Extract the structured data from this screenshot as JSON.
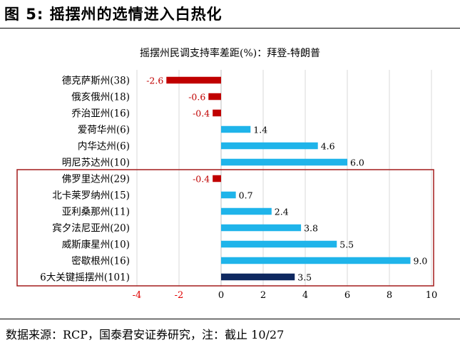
{
  "figure_title": "图 5:  摇摆州的选情进入白热化",
  "source": "数据来源：RCP，国泰君安证券研究，注：截止 10/27",
  "colors": {
    "negative": "#C00000",
    "positive": "#1FB4EA",
    "total": "#0E2860",
    "axis_text": "#000000",
    "neg_tick": "#E00000",
    "highlight_box": "#A31C1C"
  },
  "chart_data": {
    "type": "bar",
    "orientation": "horizontal",
    "title": "摇摆州民调支持率差距(%)：拜登-特朗普",
    "categories": [
      "德克萨斯州(38)",
      "俄亥俄州(18)",
      "乔治亚州(16)",
      "爱荷华州(6)",
      "内华达州(6)",
      "明尼苏达州(10)",
      "佛罗里达州(29)",
      "北卡莱罗纳州(15)",
      "亚利桑那州(11)",
      "宾夕法尼亚州(20)",
      "威斯康星州(10)",
      "密歇根州(16)",
      "6大关键摇摆州(101)"
    ],
    "values": [
      -2.6,
      -0.6,
      -0.4,
      1.4,
      4.6,
      6.0,
      -0.4,
      0.7,
      2.4,
      3.8,
      5.5,
      9.0,
      3.5
    ],
    "value_labels": [
      "-2.6",
      "-0.6",
      "-0.4",
      "1.4",
      "4.6",
      "6.0",
      "-0.4",
      "0.7",
      "2.4",
      "3.8",
      "5.5",
      "9.0",
      "3.5"
    ],
    "xlim": [
      -4,
      10
    ],
    "xticks": [
      -4,
      -2,
      0,
      2,
      4,
      6,
      8,
      10
    ],
    "xtick_labels": [
      "-4",
      "-2",
      "0",
      "2",
      "4",
      "6",
      "8",
      "10"
    ],
    "highlighted_group": [
      "佛罗里达州(29)",
      "北卡莱罗纳州(15)",
      "亚利桑那州(11)",
      "宾夕法尼亚州(20)",
      "威斯康星州(10)",
      "密歇根州(16)",
      "6大关键摇摆州(101)"
    ],
    "grid": true,
    "legend": "none"
  }
}
